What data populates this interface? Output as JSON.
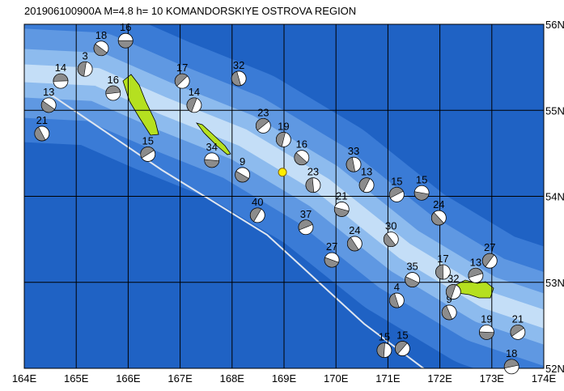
{
  "title": "201906100900A  M=4.8 h= 10 KOMANDORSKIYE OSTROVA REGION",
  "xlim": [
    164,
    174
  ],
  "ylim": [
    52,
    56
  ],
  "xticks": [
    {
      "value": 164,
      "label": "164E"
    },
    {
      "value": 165,
      "label": "165E"
    },
    {
      "value": 166,
      "label": "166E"
    },
    {
      "value": 167,
      "label": "167E"
    },
    {
      "value": 168,
      "label": "168E"
    },
    {
      "value": 169,
      "label": "169E"
    },
    {
      "value": 170,
      "label": "170E"
    },
    {
      "value": 171,
      "label": "171E"
    },
    {
      "value": 172,
      "label": "172E"
    },
    {
      "value": 173,
      "label": "173E"
    },
    {
      "value": 174,
      "label": "174E"
    }
  ],
  "yticks": [
    {
      "value": 52,
      "label": "52N"
    },
    {
      "value": 53,
      "label": "53N"
    },
    {
      "value": 54,
      "label": "54N"
    },
    {
      "value": 55,
      "label": "55N"
    },
    {
      "value": 56,
      "label": "56N"
    }
  ],
  "epicenter": {
    "lon": 168.97,
    "lat": 54.28
  },
  "events": [
    {
      "lon": 165.95,
      "lat": 55.81,
      "depth": 16
    },
    {
      "lon": 165.48,
      "lat": 55.72,
      "depth": 18
    },
    {
      "lon": 168.13,
      "lat": 55.37,
      "depth": 32
    },
    {
      "lon": 167.27,
      "lat": 55.06,
      "depth": 14
    },
    {
      "lon": 166.38,
      "lat": 54.49,
      "depth": 15
    },
    {
      "lon": 167.61,
      "lat": 54.42,
      "depth": 34
    },
    {
      "lon": 169.34,
      "lat": 54.45,
      "depth": 16
    },
    {
      "lon": 170.34,
      "lat": 54.37,
      "depth": 33
    },
    {
      "lon": 170.59,
      "lat": 54.13,
      "depth": 13
    },
    {
      "lon": 171.17,
      "lat": 54.02,
      "depth": 15
    },
    {
      "lon": 171.65,
      "lat": 54.04,
      "depth": 15
    },
    {
      "lon": 171.98,
      "lat": 53.75,
      "depth": 24
    },
    {
      "lon": 169.56,
      "lat": 54.13,
      "depth": 23
    },
    {
      "lon": 168.49,
      "lat": 53.78,
      "depth": 40
    },
    {
      "lon": 169.42,
      "lat": 53.64,
      "depth": 37
    },
    {
      "lon": 170.11,
      "lat": 53.85,
      "depth": 21
    },
    {
      "lon": 171.06,
      "lat": 53.5,
      "depth": 30
    },
    {
      "lon": 172.06,
      "lat": 53.12,
      "depth": 17
    },
    {
      "lon": 172.96,
      "lat": 53.25,
      "depth": 27
    },
    {
      "lon": 172.69,
      "lat": 53.08,
      "depth": 13
    },
    {
      "lon": 169.92,
      "lat": 53.26,
      "depth": 27
    },
    {
      "lon": 170.36,
      "lat": 53.45,
      "depth": 24
    },
    {
      "lon": 170.93,
      "lat": 52.21,
      "depth": 15
    },
    {
      "lon": 171.28,
      "lat": 52.23,
      "depth": 15
    },
    {
      "lon": 173.38,
      "lat": 52.02,
      "depth": 18
    },
    {
      "lon": 171.47,
      "lat": 53.03,
      "depth": 35
    },
    {
      "lon": 164.34,
      "lat": 54.73,
      "depth": 21
    },
    {
      "lon": 165.17,
      "lat": 55.48,
      "depth": 3
    },
    {
      "lon": 167.04,
      "lat": 55.34,
      "depth": 17
    },
    {
      "lon": 165.71,
      "lat": 55.2,
      "depth": 16
    },
    {
      "lon": 168.2,
      "lat": 54.25,
      "depth": 9
    },
    {
      "lon": 172.18,
      "lat": 52.65,
      "depth": 9
    },
    {
      "lon": 168.99,
      "lat": 54.66,
      "depth": 19
    },
    {
      "lon": 168.6,
      "lat": 54.82,
      "depth": 23
    },
    {
      "lon": 164.7,
      "lat": 55.34,
      "depth": 14
    },
    {
      "lon": 164.47,
      "lat": 55.06,
      "depth": 13
    },
    {
      "lon": 171.17,
      "lat": 52.79,
      "depth": 4
    },
    {
      "lon": 172.26,
      "lat": 52.89,
      "depth": 32
    },
    {
      "lon": 173.5,
      "lat": 52.42,
      "depth": 21
    },
    {
      "lon": 172.9,
      "lat": 52.42,
      "depth": 19
    }
  ]
}
